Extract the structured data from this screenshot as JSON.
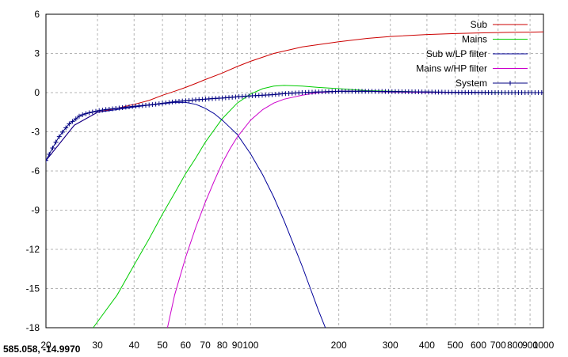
{
  "coordinate_readout": "585.058, -14.9970",
  "chart_data": {
    "type": "line",
    "x_scale": "log",
    "xlim": [
      20,
      1000
    ],
    "ylim": [
      -18,
      6
    ],
    "grid": true,
    "legend_position": "top-right",
    "x_ticks": [
      {
        "value": 20,
        "label": "20"
      },
      {
        "value": 30,
        "label": "30"
      },
      {
        "value": 40,
        "label": "40"
      },
      {
        "value": 50,
        "label": "50"
      },
      {
        "value": 60,
        "label": "60"
      },
      {
        "value": 70,
        "label": "70"
      },
      {
        "value": 80,
        "label": "80"
      },
      {
        "value": 90,
        "label": "90"
      },
      {
        "value": 100,
        "label": "100"
      },
      {
        "value": 200,
        "label": "200"
      },
      {
        "value": 300,
        "label": "300"
      },
      {
        "value": 400,
        "label": "400"
      },
      {
        "value": 500,
        "label": "500"
      },
      {
        "value": 600,
        "label": "600"
      },
      {
        "value": 700,
        "label": "700"
      },
      {
        "value": 800,
        "label": "800"
      },
      {
        "value": 900,
        "label": "900"
      },
      {
        "value": 1000,
        "label": "1000"
      }
    ],
    "y_ticks": [
      {
        "value": 6,
        "label": "6"
      },
      {
        "value": 3,
        "label": "3"
      },
      {
        "value": 0,
        "label": "0"
      },
      {
        "value": -3,
        "label": "-3"
      },
      {
        "value": -6,
        "label": "-6"
      },
      {
        "value": -9,
        "label": "-9"
      },
      {
        "value": -12,
        "label": "-12"
      },
      {
        "value": -15,
        "label": "-15"
      },
      {
        "value": -18,
        "label": "-18"
      }
    ],
    "series": [
      {
        "name": "Sub",
        "color": "#cc0000",
        "marker": "none",
        "x": [
          20,
          25,
          30,
          35,
          40,
          45,
          50,
          55,
          60,
          65,
          70,
          80,
          90,
          100,
          120,
          150,
          200,
          250,
          300,
          400,
          500,
          600,
          700,
          800,
          900,
          1000
        ],
        "y": [
          -5.2,
          -2.5,
          -1.5,
          -1.2,
          -0.9,
          -0.6,
          -0.2,
          0.1,
          0.4,
          0.7,
          1.0,
          1.5,
          2.0,
          2.4,
          3.0,
          3.5,
          3.9,
          4.15,
          4.3,
          4.45,
          4.52,
          4.57,
          4.6,
          4.62,
          4.63,
          4.65
        ]
      },
      {
        "name": "Mains",
        "color": "#00cc00",
        "marker": "none",
        "x": [
          29,
          35,
          40,
          45,
          50,
          55,
          60,
          65,
          70,
          80,
          90,
          100,
          110,
          120,
          130,
          150,
          170,
          200,
          250,
          300,
          400,
          500,
          700,
          1000
        ],
        "y": [
          -18,
          -15.5,
          -13.2,
          -11.2,
          -9.3,
          -7.7,
          -6.2,
          -5.0,
          -3.8,
          -2.0,
          -0.8,
          -0.1,
          0.3,
          0.5,
          0.55,
          0.5,
          0.4,
          0.3,
          0.15,
          0.1,
          0.05,
          0.02,
          0.01,
          0.0
        ]
      },
      {
        "name": "Sub w/LP filter",
        "color": "#000099",
        "marker": "none",
        "x": [
          20,
          25,
          30,
          35,
          40,
          45,
          50,
          55,
          60,
          65,
          70,
          75,
          80,
          90,
          100,
          110,
          120,
          130,
          140,
          150,
          160,
          170,
          180
        ],
        "y": [
          -5.2,
          -2.5,
          -1.5,
          -1.3,
          -1.1,
          -0.95,
          -0.85,
          -0.75,
          -0.75,
          -0.9,
          -1.2,
          -1.6,
          -2.1,
          -3.2,
          -4.7,
          -6.3,
          -8.0,
          -9.8,
          -11.6,
          -13.3,
          -15.0,
          -16.6,
          -18.0
        ]
      },
      {
        "name": "Mains w/HP filter",
        "color": "#cc00cc",
        "marker": "none",
        "x": [
          52,
          55,
          60,
          65,
          70,
          75,
          80,
          85,
          90,
          100,
          110,
          120,
          130,
          150,
          170,
          200,
          250,
          300,
          400,
          500,
          700,
          1000
        ],
        "y": [
          -18,
          -15.5,
          -12.6,
          -10.3,
          -8.4,
          -6.8,
          -5.4,
          -4.3,
          -3.4,
          -2.1,
          -1.3,
          -0.8,
          -0.5,
          -0.2,
          0.0,
          0.1,
          0.1,
          0.05,
          0.02,
          0.01,
          0.0,
          0.0
        ]
      },
      {
        "name": "System",
        "color": "#000080",
        "marker": "plus",
        "x": [
          20,
          21,
          22,
          23,
          24,
          25,
          26,
          27,
          28,
          30,
          32,
          35,
          38,
          40,
          45,
          50,
          55,
          60,
          65,
          70,
          75,
          80,
          90,
          100,
          110,
          120,
          130,
          150,
          170,
          200,
          250,
          300,
          400,
          500,
          600,
          700,
          800,
          900,
          1000
        ],
        "y": [
          -5.2,
          -4.3,
          -3.5,
          -2.9,
          -2.4,
          -2.1,
          -1.8,
          -1.65,
          -1.55,
          -1.4,
          -1.3,
          -1.2,
          -1.1,
          -1.05,
          -0.95,
          -0.82,
          -0.7,
          -0.62,
          -0.55,
          -0.5,
          -0.45,
          -0.42,
          -0.32,
          -0.25,
          -0.2,
          -0.15,
          -0.08,
          0.0,
          0.05,
          0.1,
          0.1,
          0.08,
          0.05,
          0.02,
          0.01,
          0.0,
          0.0,
          0.0,
          0.0
        ]
      }
    ]
  }
}
